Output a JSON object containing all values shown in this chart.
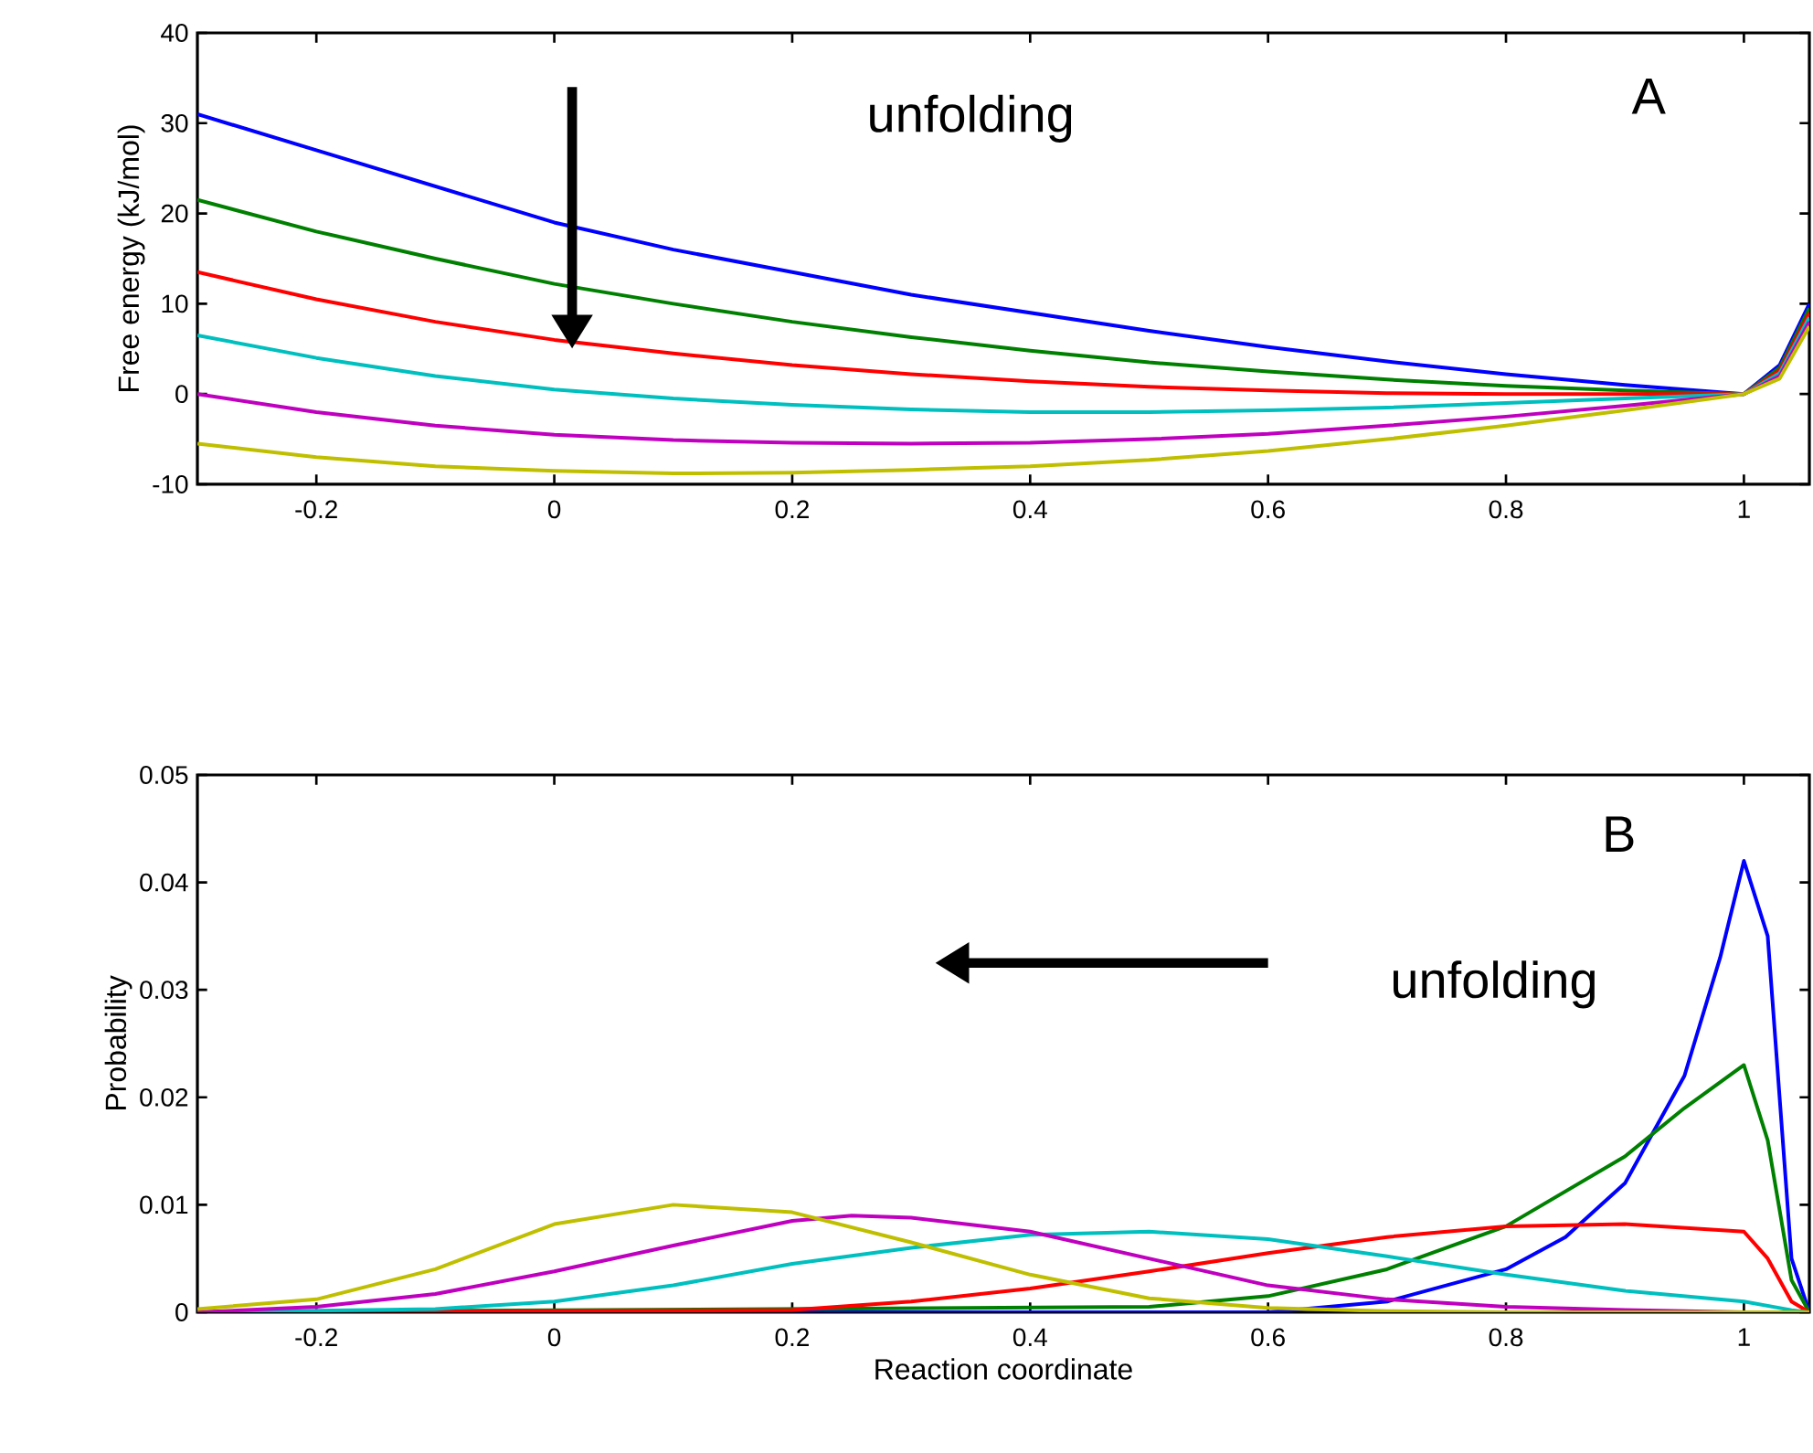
{
  "chart_data": [
    {
      "type": "line",
      "ylabel": "Free energy (kJ/mol)",
      "annotations": [
        "unfolding",
        "A"
      ],
      "xlim": [
        -0.3,
        1.055
      ],
      "ylim": [
        -10,
        40
      ],
      "xticks": [
        -0.2,
        0,
        0.2,
        0.4,
        0.6,
        0.8,
        1
      ],
      "yticks": [
        -10,
        0,
        10,
        20,
        30,
        40
      ],
      "x": [
        -0.3,
        -0.2,
        -0.1,
        0,
        0.1,
        0.2,
        0.3,
        0.4,
        0.5,
        0.6,
        0.7,
        0.8,
        0.9,
        1.0,
        1.03,
        1.055
      ],
      "series": [
        {
          "color": "#0000ff",
          "values": [
            31,
            27,
            23,
            19,
            16,
            13.5,
            11,
            9,
            7,
            5.2,
            3.6,
            2.2,
            1,
            0,
            3.2,
            10
          ]
        },
        {
          "color": "#008000",
          "values": [
            21.5,
            18,
            15,
            12.2,
            10,
            8,
            6.3,
            4.8,
            3.5,
            2.5,
            1.6,
            0.9,
            0.4,
            0,
            2.9,
            9.5
          ]
        },
        {
          "color": "#ff0000",
          "values": [
            13.5,
            10.5,
            8,
            6,
            4.5,
            3.2,
            2.2,
            1.4,
            0.8,
            0.4,
            0.1,
            0,
            0,
            0,
            2.6,
            9
          ]
        },
        {
          "color": "#00bfbf",
          "values": [
            6.5,
            4,
            2,
            0.5,
            -0.5,
            -1.2,
            -1.7,
            -2,
            -2,
            -1.8,
            -1.5,
            -1,
            -0.5,
            0,
            2.3,
            8.5
          ]
        },
        {
          "color": "#bf00bf",
          "values": [
            0,
            -2,
            -3.5,
            -4.5,
            -5.1,
            -5.4,
            -5.5,
            -5.4,
            -5,
            -4.4,
            -3.5,
            -2.5,
            -1.3,
            0,
            2.0,
            8
          ]
        },
        {
          "color": "#bfbf00",
          "values": [
            -5.5,
            -7,
            -8,
            -8.5,
            -8.8,
            -8.7,
            -8.4,
            -8,
            -7.3,
            -6.3,
            -5,
            -3.5,
            -1.8,
            0,
            1.7,
            7.5
          ]
        }
      ]
    },
    {
      "type": "line",
      "xlabel": "Reaction coordinate",
      "ylabel": "Probability",
      "annotations": [
        "B",
        "unfolding"
      ],
      "xlim": [
        -0.3,
        1.055
      ],
      "ylim": [
        0,
        0.05
      ],
      "xticks": [
        -0.2,
        0,
        0.2,
        0.4,
        0.6,
        0.8,
        1
      ],
      "yticks": [
        0,
        0.01,
        0.02,
        0.03,
        0.04,
        0.05
      ],
      "series": [
        {
          "color": "#0000ff",
          "x": [
            -0.3,
            0.6,
            0.7,
            0.8,
            0.85,
            0.9,
            0.95,
            0.98,
            1.0,
            1.02,
            1.04,
            1.055
          ],
          "values": [
            0,
            0,
            0.001,
            0.004,
            0.007,
            0.012,
            0.022,
            0.033,
            0.042,
            0.035,
            0.005,
            0
          ]
        },
        {
          "color": "#008000",
          "x": [
            -0.3,
            0.5,
            0.6,
            0.7,
            0.8,
            0.9,
            0.95,
            1.0,
            1.02,
            1.04,
            1.055
          ],
          "values": [
            0,
            0.0005,
            0.0015,
            0.004,
            0.008,
            0.0145,
            0.019,
            0.023,
            0.016,
            0.003,
            0
          ]
        },
        {
          "color": "#ff0000",
          "x": [
            -0.3,
            0.2,
            0.3,
            0.4,
            0.5,
            0.6,
            0.7,
            0.8,
            0.9,
            1.0,
            1.02,
            1.04,
            1.055
          ],
          "values": [
            0,
            0.0002,
            0.001,
            0.0022,
            0.0038,
            0.0055,
            0.007,
            0.008,
            0.0082,
            0.0075,
            0.005,
            0.001,
            0
          ]
        },
        {
          "color": "#00bfbf",
          "x": [
            -0.3,
            -0.1,
            0,
            0.1,
            0.2,
            0.3,
            0.4,
            0.5,
            0.6,
            0.7,
            0.8,
            0.9,
            1.0,
            1.04,
            1.055
          ],
          "values": [
            0,
            0.0003,
            0.001,
            0.0025,
            0.0045,
            0.006,
            0.0072,
            0.0075,
            0.0068,
            0.0052,
            0.0035,
            0.002,
            0.001,
            0.0002,
            0
          ]
        },
        {
          "color": "#bf00bf",
          "x": [
            -0.3,
            -0.2,
            -0.1,
            0,
            0.1,
            0.2,
            0.25,
            0.3,
            0.4,
            0.5,
            0.6,
            0.7,
            0.8,
            0.9,
            1.0,
            1.055
          ],
          "values": [
            0,
            0.0005,
            0.0017,
            0.0038,
            0.0062,
            0.0085,
            0.009,
            0.0088,
            0.0075,
            0.005,
            0.0025,
            0.0012,
            0.0005,
            0.0002,
            0,
            0
          ]
        },
        {
          "color": "#bfbf00",
          "x": [
            -0.3,
            -0.2,
            -0.1,
            0,
            0.1,
            0.2,
            0.3,
            0.4,
            0.5,
            0.6,
            0.7,
            0.8,
            1.055
          ],
          "values": [
            0.0003,
            0.0012,
            0.004,
            0.0082,
            0.01,
            0.0093,
            0.0065,
            0.0035,
            0.0013,
            0.0004,
            0.0001,
            0,
            0
          ]
        }
      ]
    }
  ]
}
